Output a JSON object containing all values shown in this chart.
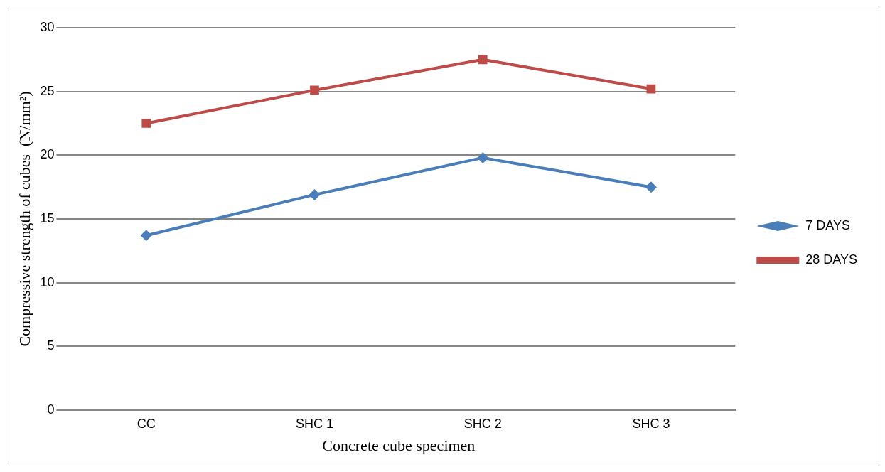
{
  "chart_data": {
    "type": "line",
    "xlabel": "Concrete cube specimen",
    "ylabel": "Compressive strength of cubes  (N/mm²)",
    "categories": [
      "CC",
      "SHC 1",
      "SHC 2",
      "SHC 3"
    ],
    "series": [
      {
        "name": "7 DAYS",
        "color": "#4a7ebb",
        "marker": "diamond",
        "values": [
          13.7,
          16.9,
          19.8,
          17.5
        ]
      },
      {
        "name": "28 DAYS",
        "color": "#be4b48",
        "marker": "square",
        "values": [
          22.5,
          25.1,
          27.5,
          25.2
        ]
      }
    ],
    "ylim": [
      0,
      30
    ],
    "yticks": [
      0,
      5,
      10,
      15,
      20,
      25,
      30
    ],
    "grid": "y",
    "legend": "right",
    "line_style": "solid"
  }
}
